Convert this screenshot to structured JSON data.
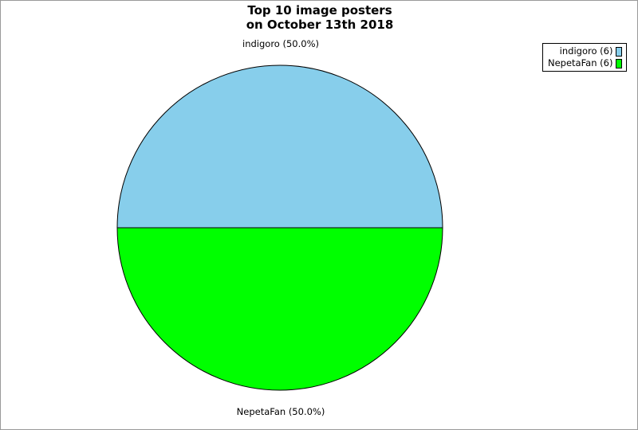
{
  "chart_data": {
    "type": "pie",
    "title": [
      "Top 10 image posters",
      "on October 13th 2018"
    ],
    "slices": [
      {
        "label": "indigoro",
        "value": 6,
        "percent": "50.0%",
        "color": "#87ceeb",
        "slice_label": "indigoro (50.0%)",
        "legend_label": "indigoro (6)"
      },
      {
        "label": "NepetaFan",
        "value": 6,
        "percent": "50.0%",
        "color": "#00ff00",
        "slice_label": "NepetaFan (50.0%)",
        "legend_label": "NepetaFan (6)"
      }
    ],
    "legend_position": "top-right"
  }
}
